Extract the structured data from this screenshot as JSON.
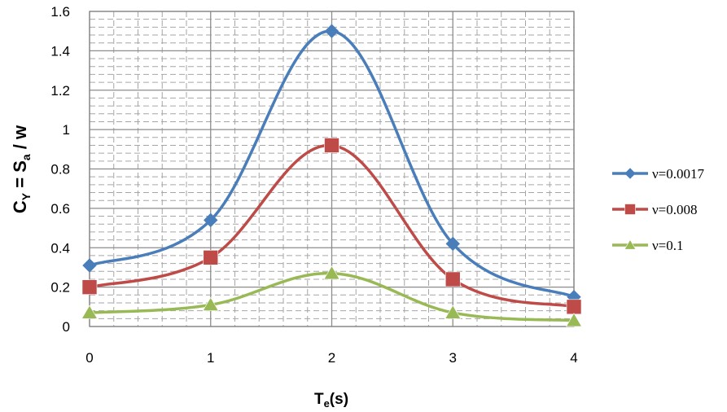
{
  "chart_data": {
    "type": "line",
    "title": "",
    "xlabel": {
      "main": "T",
      "sub": "e",
      "rest": "(s)"
    },
    "ylabel": {
      "p1": "C",
      "p1sub": "Y",
      "p2": " = S",
      "p2sub": "a",
      "p3": " / w"
    },
    "x": [
      0,
      1,
      2,
      3,
      4
    ],
    "xlim": [
      0,
      4
    ],
    "ylim": [
      0,
      1.6
    ],
    "xticks": [
      "0",
      "1",
      "2",
      "3",
      "4"
    ],
    "yticks": [
      "0",
      "0.2",
      "0.4",
      "0.6",
      "0.8",
      "1",
      "1.2",
      "1.4",
      "1.6"
    ],
    "grid": true,
    "legend_position": "right",
    "series": [
      {
        "name": "ν=0.0017",
        "color": "#4a7ebb",
        "marker": "diamond",
        "values": [
          0.31,
          0.54,
          1.5,
          0.42,
          0.15
        ]
      },
      {
        "name": "ν=0.008",
        "color": "#be4b48",
        "marker": "square",
        "values": [
          0.2,
          0.35,
          0.92,
          0.24,
          0.1
        ]
      },
      {
        "name": "ν=0.1",
        "color": "#98b954",
        "marker": "triangle",
        "values": [
          0.07,
          0.11,
          0.27,
          0.07,
          0.03
        ]
      }
    ]
  }
}
